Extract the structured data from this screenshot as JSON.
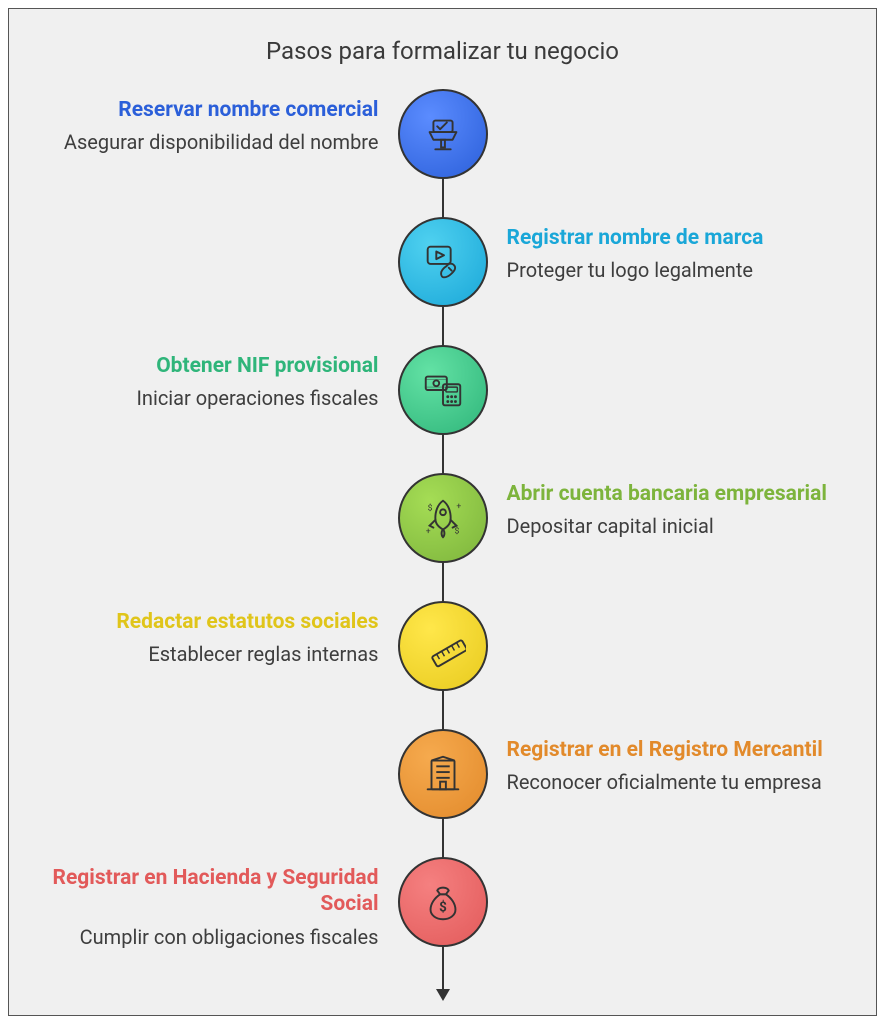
{
  "title": "Pasos para formalizar tu negocio",
  "background_color": "#f0f0f0",
  "border_color": "#555555",
  "line_color": "#333333",
  "desc_color": "#3e3e3e",
  "title_fontsize": 24,
  "step_title_fontsize": 21,
  "step_desc_fontsize": 20,
  "node_diameter": 90,
  "steps": [
    {
      "side": "left",
      "title": "Reservar nombre comercial",
      "desc": "Asegurar disponibilidad del nombre",
      "title_color": "#2b5fd9",
      "node_gradient": [
        "#5b8cff",
        "#2b5fd9"
      ],
      "icon": "vote-stand"
    },
    {
      "side": "right",
      "title": "Registrar nombre de marca",
      "desc": "Proteger tu logo legalmente",
      "title_color": "#1aa7d8",
      "node_gradient": [
        "#4fd1f0",
        "#1aa7d8"
      ],
      "icon": "play-hand"
    },
    {
      "side": "left",
      "title": "Obtener NIF provisional",
      "desc": "Iniciar operaciones fiscales",
      "title_color": "#2fb57a",
      "node_gradient": [
        "#63e2a5",
        "#2fb57a"
      ],
      "icon": "money-calc"
    },
    {
      "side": "right",
      "title": "Abrir cuenta bancaria empresarial",
      "desc": "Depositar capital inicial",
      "title_color": "#7db43c",
      "node_gradient": [
        "#a5dd55",
        "#7db43c"
      ],
      "icon": "rocket"
    },
    {
      "side": "left",
      "title": "Redactar estatutos sociales",
      "desc": "Establecer reglas internas",
      "title_color": "#e0c51a",
      "node_gradient": [
        "#ffe74a",
        "#e8ca1e"
      ],
      "icon": "ruler"
    },
    {
      "side": "right",
      "title": "Registrar en el Registro Mercantil",
      "desc": "Reconocer oficialmente tu empresa",
      "title_color": "#e28a2b",
      "node_gradient": [
        "#f6aa4e",
        "#e28a2b"
      ],
      "icon": "building"
    },
    {
      "side": "left",
      "title": "Registrar en Hacienda y Seguridad Social",
      "desc": "Cumplir con obligaciones fiscales",
      "title_color": "#e25a5a",
      "node_gradient": [
        "#f58080",
        "#e25a5a"
      ],
      "icon": "money-bag"
    }
  ]
}
